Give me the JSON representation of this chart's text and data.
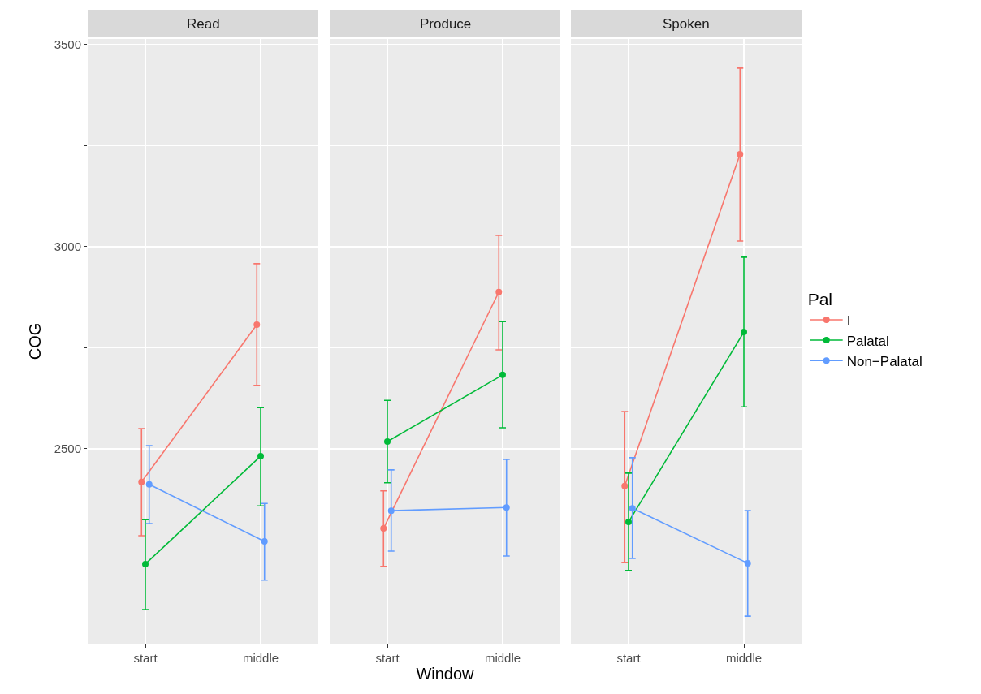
{
  "chart_data": [
    {
      "type": "line",
      "title": "Read",
      "ylabel": "COG",
      "categories": [
        "start",
        "middle"
      ],
      "ylim": [
        2018,
        3514
      ],
      "yticks": [
        {
          "value": 2250,
          "label": null
        },
        2500,
        {
          "value": 2750,
          "label": null
        },
        3000,
        {
          "value": 3250,
          "label": null
        },
        3500
      ],
      "grid": true,
      "marker": "circle",
      "legend": false,
      "series": [
        {
          "color": "#f8766d",
          "values": [
            2418,
            2807
          ],
          "errors": [
            [
              2285,
              2550
            ],
            [
              2657,
              2958
            ]
          ]
        },
        {
          "color": "#00ba38",
          "values": [
            2215,
            2482
          ],
          "errors": [
            [
              2102,
              2325
            ],
            [
              2359,
              2602
            ]
          ]
        },
        {
          "color": "#619cff",
          "values": [
            2412,
            2271
          ],
          "errors": [
            [
              2315,
              2508
            ],
            [
              2175,
              2365
            ]
          ]
        }
      ]
    },
    {
      "type": "line",
      "title": "Produce",
      "xlabel": "Window",
      "categories": [
        "start",
        "middle"
      ],
      "ylim": [
        2018,
        3514
      ],
      "yticks": [
        {
          "value": 2250,
          "label": null
        },
        2500,
        {
          "value": 2750,
          "label": null
        },
        3000,
        {
          "value": 3250,
          "label": null
        },
        3500
      ],
      "grid": true,
      "marker": "circle",
      "legend": false,
      "tick_labels": "x",
      "series": [
        {
          "color": "#f8766d",
          "values": [
            2303,
            2888
          ],
          "errors": [
            [
              2209,
              2396
            ],
            [
              2745,
              3028
            ]
          ]
        },
        {
          "color": "#00ba38",
          "values": [
            2518,
            2683
          ],
          "errors": [
            [
              2416,
              2620
            ],
            [
              2552,
              2815
            ]
          ]
        },
        {
          "color": "#619cff",
          "values": [
            2347,
            2355
          ],
          "errors": [
            [
              2247,
              2448
            ],
            [
              2235,
              2474
            ]
          ]
        }
      ]
    },
    {
      "type": "line",
      "title": "Spoken",
      "legend_title": "Pal",
      "categories": [
        "start",
        "middle"
      ],
      "ylim": [
        2018,
        3514
      ],
      "yticks": [
        {
          "value": 2250,
          "label": null
        },
        2500,
        {
          "value": 2750,
          "label": null
        },
        3000,
        {
          "value": 3250,
          "label": null
        },
        3500
      ],
      "grid": true,
      "marker": "circle",
      "legend": "right",
      "tick_labels": "x",
      "series": [
        {
          "name": "I",
          "color": "#f8766d",
          "values": [
            2408,
            3229
          ],
          "errors": [
            [
              2219,
              2592
            ],
            [
              3014,
              3442
            ]
          ]
        },
        {
          "name": "Palatal",
          "color": "#00ba38",
          "values": [
            2319,
            2789
          ],
          "errors": [
            [
              2199,
              2440
            ],
            [
              2604,
              2974
            ]
          ]
        },
        {
          "name": "Non−Palatal",
          "color": "#619cff",
          "values": [
            2353,
            2217
          ],
          "errors": [
            [
              2229,
              2478
            ],
            [
              2086,
              2347
            ]
          ]
        }
      ]
    }
  ]
}
